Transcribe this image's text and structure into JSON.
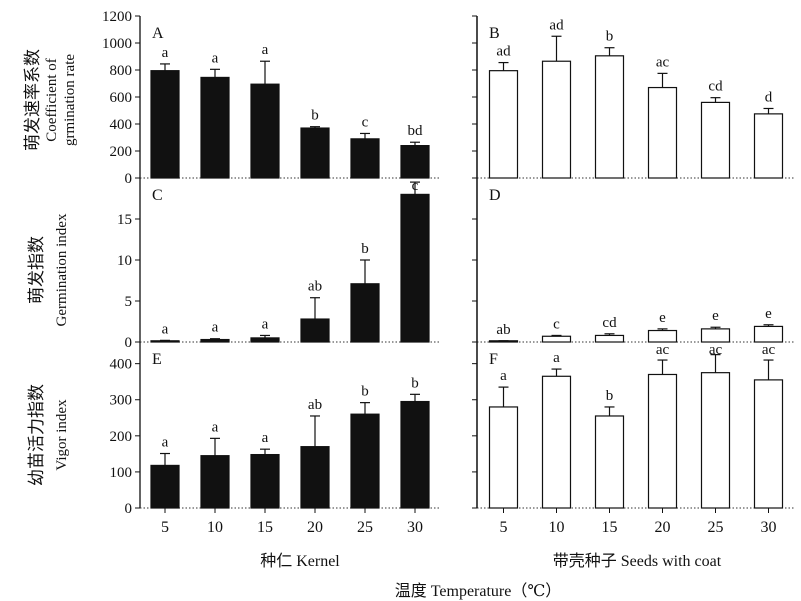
{
  "figure": {
    "x_group_left": "种仁  Kernel",
    "x_group_right": "带壳种子  Seeds with coat",
    "x_title": "温度 Temperature（℃）"
  },
  "chart_data": [
    {
      "panel": "A",
      "type": "bar",
      "ylabel_cn": "萌发速率系数",
      "ylabel_en_1": "Coefficient of",
      "ylabel_en_2": "grmination rate",
      "categories": [
        "5",
        "10",
        "15",
        "20",
        "25",
        "30"
      ],
      "values": [
        795,
        745,
        695,
        370,
        290,
        240
      ],
      "errors": [
        50,
        60,
        170,
        10,
        40,
        25
      ],
      "letters": [
        "a",
        "a",
        "a",
        "b",
        "c",
        "bd"
      ],
      "ylim": [
        0,
        1200
      ],
      "yticks": [
        0,
        200,
        400,
        600,
        800,
        1000,
        1200
      ],
      "fill": "#111111"
    },
    {
      "panel": "B",
      "type": "bar",
      "categories": [
        "5",
        "10",
        "15",
        "20",
        "25",
        "30"
      ],
      "values": [
        795,
        865,
        905,
        670,
        560,
        475
      ],
      "errors": [
        60,
        185,
        60,
        105,
        35,
        40
      ],
      "letters": [
        "ad",
        "ad",
        "b",
        "ac",
        "cd",
        "d"
      ],
      "ylim": [
        0,
        1200
      ],
      "fill": "#ffffff"
    },
    {
      "panel": "C",
      "type": "bar",
      "ylabel_cn": "萌发指数",
      "ylabel_en": "Germination index",
      "categories": [
        "5",
        "10",
        "15",
        "20",
        "25",
        "30"
      ],
      "values": [
        0.1,
        0.3,
        0.5,
        2.8,
        7.1,
        18.0
      ],
      "errors": [
        0.1,
        0.1,
        0.3,
        2.6,
        2.9,
        1.5
      ],
      "letters": [
        "a",
        "a",
        "a",
        "ab",
        "b",
        "c"
      ],
      "ylim": [
        0,
        20
      ],
      "yticks": [
        0,
        5,
        10,
        15
      ],
      "fill": "#111111"
    },
    {
      "panel": "D",
      "type": "bar",
      "categories": [
        "5",
        "10",
        "15",
        "20",
        "25",
        "30"
      ],
      "values": [
        0.1,
        0.7,
        0.8,
        1.4,
        1.6,
        1.9
      ],
      "errors": [
        0.05,
        0.1,
        0.2,
        0.2,
        0.2,
        0.2
      ],
      "letters": [
        "ab",
        "c",
        "cd",
        "e",
        "e",
        "e"
      ],
      "ylim": [
        0,
        20
      ],
      "fill": "#ffffff"
    },
    {
      "panel": "E",
      "type": "bar",
      "ylabel_cn": "幼苗活力指数",
      "ylabel_en": "Vigor index",
      "categories": [
        "5",
        "10",
        "15",
        "20",
        "25",
        "30"
      ],
      "values": [
        118,
        145,
        148,
        170,
        260,
        295
      ],
      "errors": [
        33,
        48,
        15,
        85,
        32,
        20
      ],
      "letters": [
        "a",
        "a",
        "a",
        "ab",
        "b",
        "b"
      ],
      "ylim": [
        0,
        460
      ],
      "yticks": [
        0,
        100,
        200,
        300,
        400
      ],
      "fill": "#111111"
    },
    {
      "panel": "F",
      "type": "bar",
      "categories": [
        "5",
        "10",
        "15",
        "20",
        "25",
        "30"
      ],
      "values": [
        280,
        365,
        255,
        370,
        375,
        355
      ],
      "errors": [
        55,
        20,
        25,
        40,
        50,
        55
      ],
      "letters": [
        "a",
        "a",
        "b",
        "ac",
        "ac",
        "ac"
      ],
      "ylim": [
        0,
        460
      ],
      "fill": "#ffffff"
    }
  ]
}
